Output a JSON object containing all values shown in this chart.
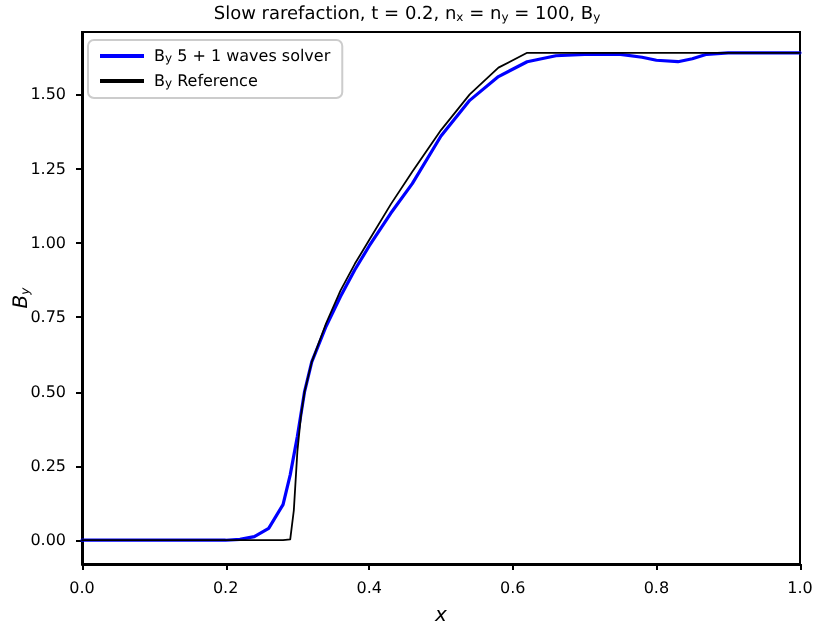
{
  "chart_data": {
    "type": "line",
    "title": "Slow rarefaction, t = 0.2, n$_{x}$ = n$_{y}$ = 100, B$_{y}$",
    "xlabel": "x",
    "ylabel": "B$_{y}$",
    "xlim": [
      0,
      1
    ],
    "xticks": [
      {
        "value": 0,
        "label": "0.0"
      },
      {
        "value": 0.2,
        "label": "0.2"
      },
      {
        "value": 0.4,
        "label": "0.4"
      },
      {
        "value": 0.6,
        "label": "0.6"
      },
      {
        "value": 0.8,
        "label": "0.8"
      },
      {
        "value": 1,
        "label": "1.0"
      }
    ],
    "ylim": [
      -0.08,
      1.71
    ],
    "yticks": [
      {
        "value": 0,
        "label": "0.00"
      },
      {
        "value": 0.25,
        "label": "0.25"
      },
      {
        "value": 0.5,
        "label": "0.50"
      },
      {
        "value": 0.75,
        "label": "0.75"
      },
      {
        "value": 1,
        "label": "1.00"
      },
      {
        "value": 1.25,
        "label": "1.25"
      },
      {
        "value": 1.5,
        "label": "1.50"
      }
    ],
    "grid": false,
    "legend": "top left",
    "marker": "none",
    "series": [
      {
        "name": "B$_{y}$ 5 + 1 waves solver",
        "color": "#0000ff",
        "x": [
          0,
          0.2,
          0.22,
          0.24,
          0.26,
          0.28,
          0.29,
          0.3,
          0.31,
          0.32,
          0.34,
          0.36,
          0.38,
          0.4,
          0.43,
          0.46,
          0.5,
          0.54,
          0.58,
          0.62,
          0.66,
          0.7,
          0.75,
          0.78,
          0.8,
          0.83,
          0.85,
          0.87,
          0.9,
          1
        ],
        "values": [
          0,
          0,
          0.003,
          0.012,
          0.04,
          0.12,
          0.22,
          0.35,
          0.5,
          0.6,
          0.72,
          0.82,
          0.91,
          0.99,
          1.1,
          1.2,
          1.36,
          1.48,
          1.56,
          1.61,
          1.63,
          1.635,
          1.635,
          1.625,
          1.615,
          1.61,
          1.62,
          1.635,
          1.64,
          1.64
        ]
      },
      {
        "name": "B$_{y}$ Reference",
        "color": "#000000",
        "x": [
          0,
          0.28,
          0.29,
          0.295,
          0.3,
          0.305,
          0.31,
          0.32,
          0.34,
          0.36,
          0.38,
          0.4,
          0.43,
          0.46,
          0.5,
          0.54,
          0.58,
          0.62,
          0.66,
          1
        ],
        "values": [
          0,
          0,
          0.003,
          0.1,
          0.3,
          0.42,
          0.5,
          0.6,
          0.73,
          0.84,
          0.93,
          1.01,
          1.13,
          1.24,
          1.38,
          1.5,
          1.59,
          1.64,
          1.64,
          1.64
        ]
      }
    ]
  }
}
